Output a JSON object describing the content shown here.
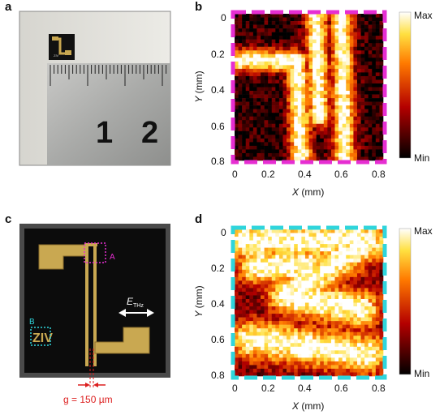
{
  "panels": {
    "a": {
      "label": "a",
      "ruler_numbers": [
        "1",
        "2"
      ]
    },
    "b": {
      "label": "b"
    },
    "c": {
      "label": "c",
      "marker_a": "A",
      "marker_b": "B",
      "field_label": "E",
      "field_sub": "THz",
      "gap_label": "g = 150 µm"
    },
    "d": {
      "label": "d"
    }
  },
  "axes": {
    "x_label_var": "X",
    "x_label_unit": " (mm)",
    "y_label_var": "Y",
    "y_label_unit": " (mm)",
    "x_ticks": [
      "0",
      "0.2",
      "0.4",
      "0.6",
      "0.8"
    ],
    "y_ticks": [
      "0",
      "0.2",
      "0.4",
      "0.6",
      "0.8"
    ]
  },
  "colorbar": {
    "max_label": "Max",
    "min_label": "Min"
  },
  "colors": {
    "magenta": "#e62ed2",
    "cyan": "#2fd5dc",
    "red": "#dc1e1e"
  }
}
